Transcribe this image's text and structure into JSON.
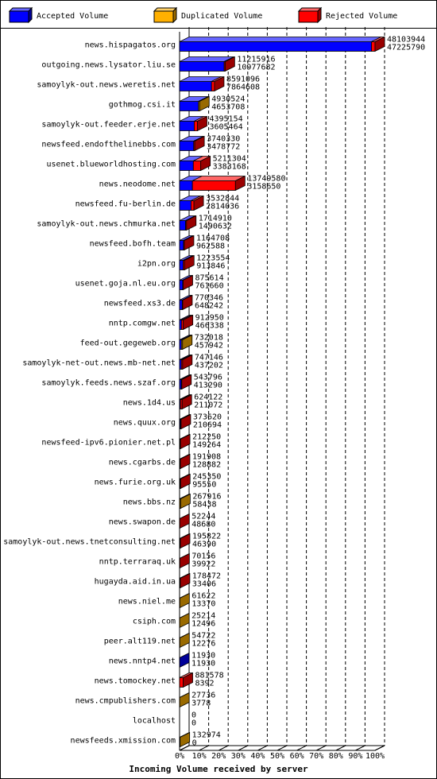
{
  "chart_data": {
    "type": "bar",
    "orientation": "horizontal",
    "xlabel": "Incoming Volume received by server",
    "categories": [
      "news.hispagatos.org",
      "outgoing.news.lysator.liu.se",
      "samoylyk-out.news.weretis.net",
      "gothmog.csi.it",
      "samoylyk-out.feeder.erje.net",
      "newsfeed.endofthelinebbs.com",
      "usenet.blueworldhosting.com",
      "news.neodome.net",
      "newsfeed.fu-berlin.de",
      "samoylyk-out.news.chmurka.net",
      "newsfeed.bofh.team",
      "i2pn.org",
      "usenet.goja.nl.eu.org",
      "newsfeed.xs3.de",
      "nntp.comgw.net",
      "feed-out.gegeweb.org",
      "samoylyk-net-out.news.mb-net.net",
      "samoylyk.feeds.news.szaf.org",
      "news.1d4.us",
      "news.quux.org",
      "newsfeed-ipv6.pionier.net.pl",
      "news.cgarbs.de",
      "news.furie.org.uk",
      "news.bbs.nz",
      "news.swapon.de",
      "samoylyk-out.news.tnetconsulting.net",
      "nntp.terraraq.uk",
      "hugayda.aid.in.ua",
      "news.niel.me",
      "csiph.com",
      "peer.alt119.net",
      "news.nntp4.net",
      "news.tomockey.net",
      "news.cmpublishers.com",
      "localhost",
      "newsfeeds.xmission.com"
    ],
    "totals": [
      48103944,
      11215916,
      8591096,
      4930524,
      4395154,
      3740330,
      5211304,
      13749580,
      3532844,
      1714910,
      1164708,
      1223554,
      875614,
      770346,
      912950,
      732018,
      747146,
      543796,
      624122,
      373620,
      212250,
      191908,
      245350,
      267916,
      52244,
      195822,
      70156,
      178472,
      61622,
      25214,
      54722,
      11930,
      881578,
      27736,
      0,
      132974
    ],
    "series": [
      {
        "name": "Accepted Volume",
        "color": "#0000ff",
        "values": [
          47225790,
          10977682,
          7864608,
          4653708,
          3605464,
          3478772,
          3383168,
          3158650,
          2814036,
          1490632,
          962588,
          913846,
          761660,
          648242,
          466338,
          457942,
          437202,
          413290,
          211072,
          210694,
          149264,
          128882,
          95550,
          58438,
          48680,
          46390,
          39922,
          33406,
          13370,
          12496,
          12276,
          11930,
          8392,
          3778,
          0,
          0
        ]
      },
      {
        "name": "Duplicated Volume",
        "color": "#ffb000",
        "values": [
          0,
          0,
          0,
          276816,
          0,
          0,
          0,
          0,
          0,
          0,
          0,
          0,
          0,
          0,
          0,
          274076,
          0,
          0,
          0,
          0,
          0,
          0,
          0,
          209478,
          0,
          0,
          0,
          0,
          48252,
          12718,
          42446,
          0,
          0,
          23958,
          0,
          132974
        ]
      },
      {
        "name": "Rejected Volume",
        "color": "#ff0000",
        "values": [
          878154,
          238234,
          726488,
          0,
          789690,
          261558,
          1828136,
          10590930,
          718808,
          224278,
          202120,
          309708,
          113954,
          122104,
          446612,
          0,
          309944,
          130506,
          413050,
          162926,
          62986,
          63026,
          149800,
          0,
          3564,
          149432,
          30234,
          145066,
          0,
          0,
          0,
          0,
          873186,
          0,
          0,
          0
        ]
      }
    ],
    "xlim": [
      0,
      48103944
    ],
    "xticks": [
      {
        "value": 0,
        "label": "0%"
      },
      {
        "value": 4810394.4,
        "label": "10%"
      },
      {
        "value": 9620788.8,
        "label": "20%"
      },
      {
        "value": 14431183.2,
        "label": "30%"
      },
      {
        "value": 19241577.6,
        "label": "40%"
      },
      {
        "value": 24051972,
        "label": "50%"
      },
      {
        "value": 28862366.4,
        "label": "60%"
      },
      {
        "value": 33672760.8,
        "label": "70%"
      },
      {
        "value": 38483155.2,
        "label": "80%"
      },
      {
        "value": 43293549.6,
        "label": "90%"
      },
      {
        "value": 48103944,
        "label": "100%"
      }
    ],
    "grid": true
  }
}
